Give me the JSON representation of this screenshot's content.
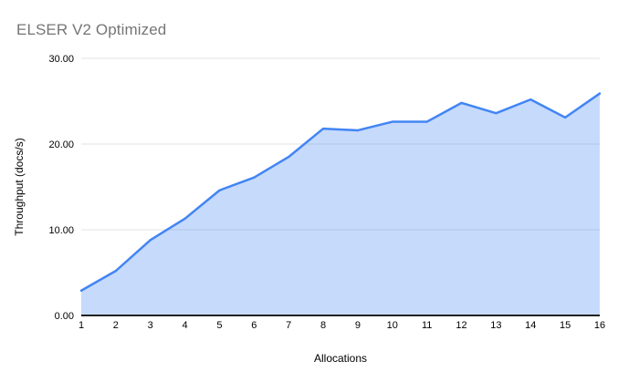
{
  "chart_data": {
    "type": "area",
    "title": "ELSER V2 Optimized",
    "xlabel": "Allocations",
    "ylabel": "Throughput (docs/s)",
    "categories": [
      "1",
      "2",
      "3",
      "4",
      "5",
      "6",
      "7",
      "8",
      "9",
      "10",
      "11",
      "12",
      "13",
      "14",
      "15",
      "16"
    ],
    "series": [
      {
        "name": "Throughput",
        "values": [
          2.9,
          5.2,
          8.8,
          11.3,
          14.6,
          16.1,
          18.5,
          21.8,
          21.6,
          22.6,
          22.6,
          24.8,
          23.6,
          25.2,
          23.1,
          25.9
        ]
      }
    ],
    "ylim": [
      0,
      30
    ],
    "y_ticks": [
      0,
      10,
      20,
      30
    ],
    "y_tick_labels": [
      "0.00",
      "10.00",
      "20.00",
      "30.00"
    ],
    "grid": true,
    "legend": "none",
    "colors": {
      "line": "#4285f4",
      "fill": "#4285f4",
      "fill_opacity": 0.3,
      "grid": "#e3e3e3",
      "axis": "#212121",
      "title_text": "#757575",
      "tick_text": "#000000",
      "background": "#ffffff"
    }
  }
}
